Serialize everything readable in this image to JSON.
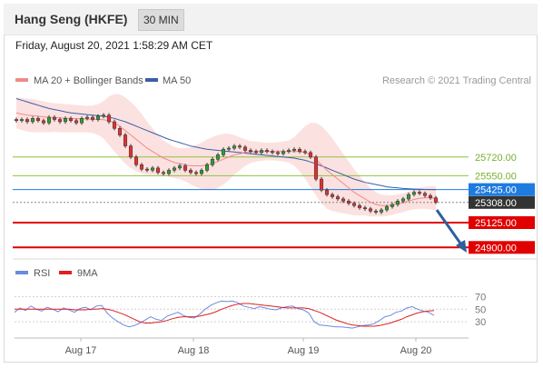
{
  "header": {
    "title": "Hang Seng (HKFE)",
    "timeframe": "30 MIN"
  },
  "datetime": "Friday, August 20, 2021 1:58:29 AM CET",
  "legend": {
    "items": [
      {
        "name": "MA 20 + Bollinger Bands",
        "color": "#f08a8a"
      },
      {
        "name": "MA 50",
        "color": "#3b5ea8"
      }
    ],
    "copyright": "Research © 2021 Trading Central"
  },
  "rsi_legend": {
    "items": [
      {
        "name": "RSI",
        "color": "#6b8be0"
      },
      {
        "name": "9MA",
        "color": "#e02020"
      }
    ]
  },
  "chart_data": [
    {
      "type": "candlestick",
      "x_tick_labels": [
        "Aug 17",
        "Aug 18",
        "Aug 19",
        "Aug 20"
      ],
      "price_levels": [
        {
          "value": 25720.0,
          "label": "25720.00",
          "color": "#8cc43c",
          "kind": "resistance"
        },
        {
          "value": 25550.0,
          "label": "25550.00",
          "color": "#8cc43c",
          "kind": "resistance"
        },
        {
          "value": 25425.0,
          "label": "25425.00",
          "color": "#1e7be0",
          "kind": "pivot"
        },
        {
          "value": 25308.0,
          "label": "25308.00",
          "color": "#333333",
          "kind": "last"
        },
        {
          "value": 25125.0,
          "label": "25125.00",
          "color": "#e00000",
          "kind": "support"
        },
        {
          "value": 24900.0,
          "label": "24900.00",
          "color": "#e00000",
          "kind": "support"
        }
      ],
      "close": [
        26050,
        26060,
        26040,
        26070,
        26050,
        26030,
        26080,
        26060,
        26040,
        26070,
        26050,
        26030,
        26070,
        26080,
        26060,
        26090,
        26100,
        26040,
        25980,
        25920,
        25820,
        25720,
        25650,
        25610,
        25600,
        25620,
        25580,
        25570,
        25600,
        25620,
        25640,
        25600,
        25580,
        25570,
        25600,
        25650,
        25700,
        25740,
        25790,
        25800,
        25820,
        25810,
        25780,
        25770,
        25760,
        25780,
        25770,
        25760,
        25750,
        25770,
        25780,
        25790,
        25770,
        25760,
        25720,
        25520,
        25420,
        25380,
        25360,
        25340,
        25320,
        25300,
        25280,
        25260,
        25250,
        25230,
        25220,
        25240,
        25270,
        25290,
        25320,
        25340,
        25380,
        25400,
        25390,
        25370,
        25350,
        25310
      ],
      "ma20": [
        26120,
        26110,
        26100,
        26095,
        26090,
        26085,
        26080,
        26078,
        26075,
        26072,
        26070,
        26068,
        26066,
        26064,
        26062,
        26060,
        26058,
        26050,
        26030,
        26000,
        25960,
        25920,
        25880,
        25840,
        25800,
        25770,
        25740,
        25710,
        25690,
        25670,
        25660,
        25650,
        25640,
        25640,
        25640,
        25650,
        25660,
        25680,
        25700,
        25720,
        25740,
        25750,
        25760,
        25765,
        25770,
        25770,
        25770,
        25770,
        25770,
        25770,
        25770,
        25770,
        25770,
        25760,
        25740,
        25700,
        25650,
        25600,
        25560,
        25520,
        25480,
        25440,
        25400,
        25370,
        25340,
        25310,
        25290,
        25280,
        25280,
        25285,
        25295,
        25305,
        25320,
        25335,
        25345,
        25350,
        25350,
        25345
      ],
      "ma50": [
        26250,
        26235,
        26220,
        26205,
        26190,
        26175,
        26160,
        26150,
        26140,
        26130,
        26120,
        26115,
        26110,
        26105,
        26100,
        26095,
        26090,
        26080,
        26070,
        26055,
        26040,
        26020,
        26000,
        25980,
        25960,
        25940,
        25920,
        25900,
        25880,
        25865,
        25850,
        25835,
        25820,
        25810,
        25800,
        25790,
        25785,
        25780,
        25775,
        25770,
        25765,
        25760,
        25755,
        25750,
        25745,
        25740,
        25735,
        25730,
        25725,
        25720,
        25715,
        25710,
        25700,
        25690,
        25675,
        25660,
        25640,
        25620,
        25600,
        25580,
        25560,
        25540,
        25520,
        25505,
        25490,
        25480,
        25470,
        25460,
        25450,
        25445,
        25440,
        25435,
        25432,
        25430,
        25428,
        25426,
        25425,
        25424
      ],
      "bb_width": [
        140,
        145,
        150,
        150,
        145,
        140,
        135,
        130,
        130,
        128,
        126,
        124,
        122,
        120,
        125,
        140,
        170,
        220,
        260,
        290,
        300,
        300,
        290,
        270,
        240,
        210,
        180,
        160,
        150,
        140,
        140,
        150,
        170,
        190,
        210,
        230,
        240,
        240,
        230,
        210,
        180,
        150,
        120,
        100,
        90,
        85,
        80,
        80,
        85,
        90,
        100,
        130,
        180,
        240,
        290,
        330,
        350,
        350,
        330,
        300,
        270,
        240,
        210,
        180,
        150,
        130,
        110,
        100,
        95,
        90,
        85,
        85,
        85,
        90,
        95,
        100,
        105,
        110
      ],
      "y_range": [
        24820,
        26320
      ]
    },
    {
      "type": "line",
      "title": "RSI",
      "y_ticks": [
        70,
        50,
        30
      ],
      "ylim": [
        10,
        85
      ],
      "series": [
        {
          "name": "RSI",
          "values": [
            45,
            52,
            48,
            55,
            50,
            47,
            53,
            50,
            46,
            52,
            49,
            45,
            51,
            53,
            49,
            55,
            56,
            44,
            36,
            30,
            25,
            22,
            24,
            28,
            33,
            38,
            34,
            32,
            39,
            42,
            45,
            40,
            37,
            36,
            42,
            50,
            56,
            60,
            63,
            62,
            63,
            60,
            55,
            53,
            51,
            54,
            52,
            50,
            49,
            52,
            54,
            55,
            51,
            49,
            44,
            30,
            25,
            24,
            23,
            22,
            22,
            21,
            20,
            22,
            24,
            25,
            27,
            32,
            38,
            40,
            45,
            47,
            52,
            54,
            50,
            47,
            45,
            40
          ]
        },
        {
          "name": "9MA",
          "values": [
            50,
            50,
            50,
            50,
            50,
            50,
            50,
            50,
            50,
            50,
            50,
            49,
            49,
            49,
            50,
            50,
            51,
            50,
            48,
            45,
            42,
            38,
            34,
            30,
            28,
            28,
            29,
            30,
            32,
            35,
            37,
            38,
            38,
            38,
            39,
            41,
            43,
            46,
            50,
            53,
            56,
            58,
            59,
            59,
            58,
            57,
            56,
            55,
            54,
            53,
            52,
            52,
            52,
            52,
            51,
            48,
            45,
            41,
            37,
            33,
            30,
            27,
            25,
            24,
            23,
            23,
            23,
            24,
            26,
            28,
            31,
            34,
            38,
            41,
            44,
            46,
            47,
            48
          ]
        }
      ]
    }
  ]
}
